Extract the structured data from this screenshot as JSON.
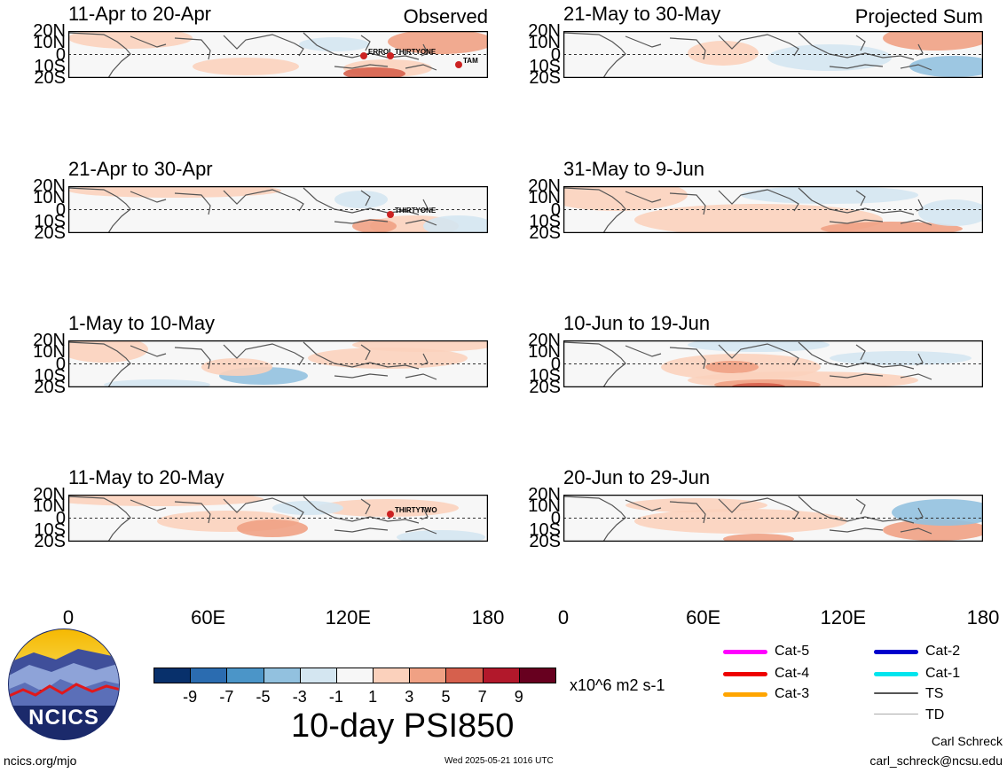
{
  "chart_data": {
    "type": "heatmap",
    "variable_title": "10-day PSI850",
    "units": "x10^6 m2 s-1",
    "yticks": [
      "20N",
      "10N",
      "0",
      "10S",
      "20S"
    ],
    "xticks": [
      "0",
      "60E",
      "120E",
      "180"
    ],
    "colorbar": {
      "labels": [
        "-9",
        "-7",
        "-5",
        "-3",
        "-1",
        "1",
        "3",
        "5",
        "7",
        "9"
      ],
      "colors": [
        "#08306b",
        "#2b6cb0",
        "#4b95c8",
        "#92c1df",
        "#d4e6f1",
        "#f7f7f7",
        "#fbd1bc",
        "#f0a184",
        "#d6604d",
        "#b2182b",
        "#67001f"
      ]
    },
    "panels": [
      {
        "id": "obs1",
        "period": "11-Apr to 20-Apr",
        "label": "Observed",
        "storms": [
          "ERROL",
          "THIRTYONE",
          "TAM"
        ]
      },
      {
        "id": "obs2",
        "period": "21-Apr to 30-Apr",
        "label": "",
        "storms": [
          "THIRTYONE"
        ]
      },
      {
        "id": "obs3",
        "period": "1-May to 10-May",
        "label": "",
        "storms": []
      },
      {
        "id": "obs4",
        "period": "11-May to 20-May",
        "label": "",
        "storms": [
          "THIRTYTWO"
        ]
      },
      {
        "id": "proj1",
        "period": "21-May to 30-May",
        "label": "Projected Sum",
        "storms": []
      },
      {
        "id": "proj2",
        "period": "31-May to 9-Jun",
        "label": "",
        "storms": []
      },
      {
        "id": "proj3",
        "period": "10-Jun to 19-Jun",
        "label": "",
        "storms": []
      },
      {
        "id": "proj4",
        "period": "20-Jun to 29-Jun",
        "label": "",
        "storms": []
      }
    ],
    "storm_legend": [
      {
        "label": "Cat-5",
        "color": "#ff00ff"
      },
      {
        "label": "Cat-4",
        "color": "#ee0000"
      },
      {
        "label": "Cat-3",
        "color": "#ffa500"
      },
      {
        "label": "Cat-2",
        "color": "#0000cc"
      },
      {
        "label": "Cat-1",
        "color": "#00e5ee"
      },
      {
        "label": "TS",
        "color": "#555555"
      },
      {
        "label": "TD",
        "color": "#aaaaaa"
      }
    ]
  },
  "logo": {
    "text": "NCICS"
  },
  "footer": {
    "url": "ncics.org/mjo",
    "timestamp": "Wed 2025-05-21 1016 UTC",
    "author": "Carl Schreck",
    "email": "carl_schreck@ncsu.edu"
  }
}
